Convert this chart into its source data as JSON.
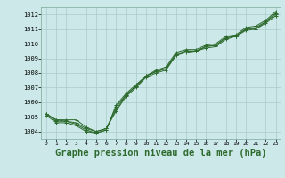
{
  "background_color": "#cce8e8",
  "grid_color": "#aacccc",
  "line_color": "#2d6a2d",
  "marker": "+",
  "xlabel": "Graphe pression niveau de la mer (hPa)",
  "xlabel_fontsize": 7.5,
  "title": "",
  "xlim": [
    -0.5,
    23.5
  ],
  "ylim": [
    1003.5,
    1012.5
  ],
  "yticks": [
    1004,
    1005,
    1006,
    1007,
    1008,
    1009,
    1010,
    1011,
    1012
  ],
  "xticks": [
    0,
    1,
    2,
    3,
    4,
    5,
    6,
    7,
    8,
    9,
    10,
    11,
    12,
    13,
    14,
    15,
    16,
    17,
    18,
    19,
    20,
    21,
    22,
    23
  ],
  "series": [
    [
      1005.2,
      1004.8,
      1004.8,
      1004.8,
      1004.3,
      1004.0,
      1004.2,
      1005.5,
      1006.5,
      1007.1,
      1007.8,
      1008.1,
      1008.3,
      1009.3,
      1009.5,
      1009.5,
      1009.8,
      1009.9,
      1010.4,
      1010.5,
      1011.0,
      1011.1,
      1011.5,
      1012.1
    ],
    [
      1005.2,
      1004.8,
      1004.7,
      1004.6,
      1004.2,
      1004.0,
      1004.2,
      1005.4,
      1006.4,
      1007.0,
      1007.7,
      1008.0,
      1008.2,
      1009.2,
      1009.4,
      1009.5,
      1009.7,
      1009.8,
      1010.3,
      1010.5,
      1010.9,
      1011.0,
      1011.4,
      1011.9
    ],
    [
      1005.2,
      1004.7,
      1004.7,
      1004.5,
      1004.1,
      1003.9,
      1004.1,
      1005.8,
      1006.6,
      1007.2,
      1007.8,
      1008.2,
      1008.4,
      1009.4,
      1009.6,
      1009.6,
      1009.9,
      1010.0,
      1010.5,
      1010.6,
      1011.1,
      1011.2,
      1011.6,
      1012.2
    ],
    [
      1005.1,
      1004.6,
      1004.6,
      1004.4,
      1004.0,
      1003.9,
      1004.1,
      1005.7,
      1006.5,
      1007.1,
      1007.8,
      1008.1,
      1008.3,
      1009.2,
      1009.5,
      1009.5,
      1009.8,
      1009.9,
      1010.4,
      1010.5,
      1011.0,
      1011.0,
      1011.5,
      1012.0
    ]
  ]
}
